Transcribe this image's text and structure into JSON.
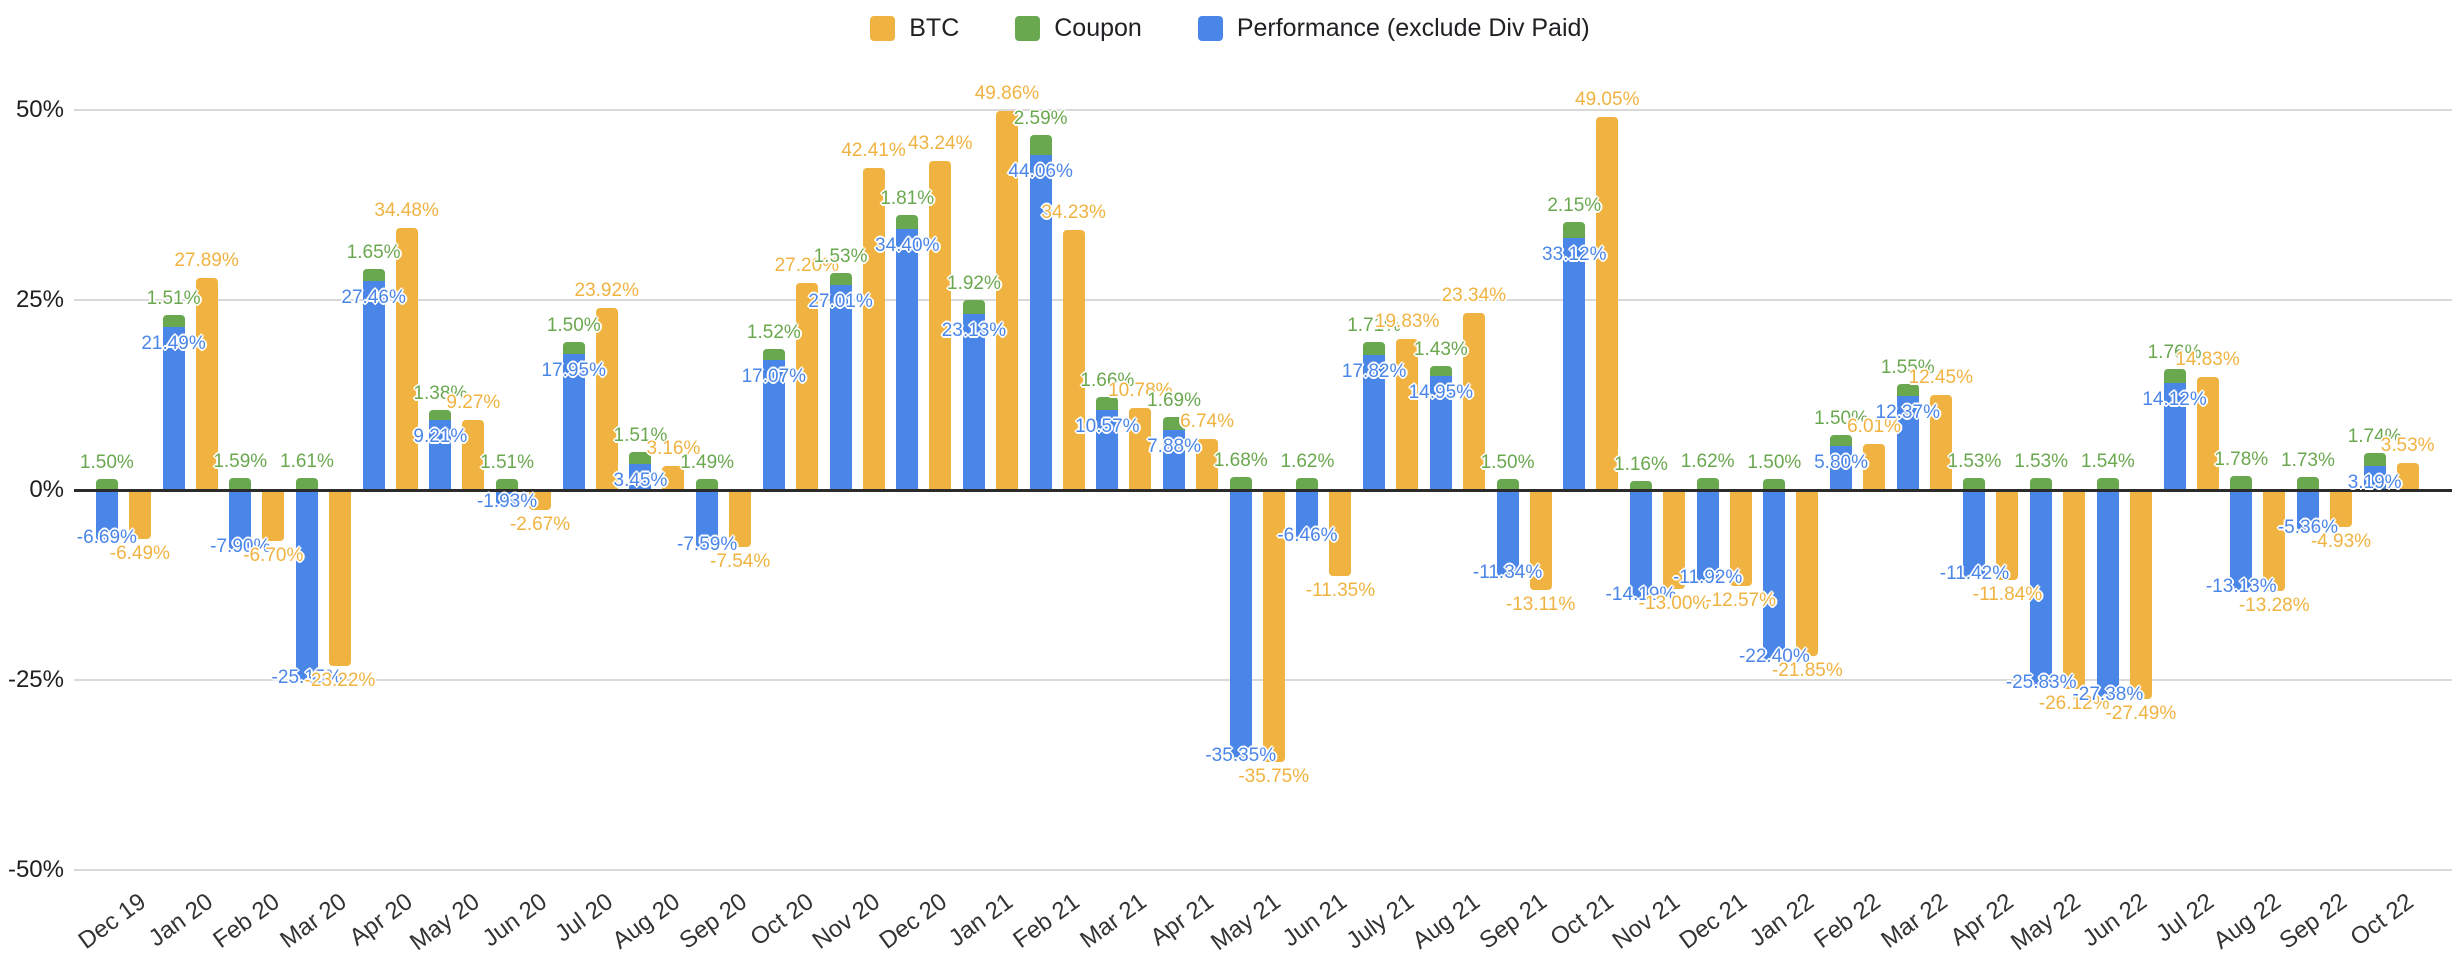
{
  "legend": {
    "items": [
      {
        "label": "BTC",
        "color": "#F0B341"
      },
      {
        "label": "Coupon",
        "color": "#6AA84F"
      },
      {
        "label": "Performance (exclude Div Paid)",
        "color": "#4A86E8"
      }
    ]
  },
  "y_axis": {
    "ticks": [
      {
        "label": "50%",
        "value": 50
      },
      {
        "label": "25%",
        "value": 25
      },
      {
        "label": "0%",
        "value": 0
      },
      {
        "label": "-25%",
        "value": -25
      },
      {
        "label": "-50%",
        "value": -50
      }
    ],
    "min": -50,
    "max": 50
  },
  "chart_data": {
    "type": "bar",
    "title": "",
    "xlabel": "",
    "ylabel": "",
    "ylim": [
      -50,
      50
    ],
    "grid": true,
    "legend_position": "top",
    "bar_layout": "Performance and Coupon stacked in one column; BTC as separate column to the right of each month group",
    "value_format": "percent, two decimals, labeled on bars",
    "categories": [
      "Dec 19",
      "Jan 20",
      "Feb 20",
      "Mar 20",
      "Apr 20",
      "May 20",
      "Jun 20",
      "Jul 20",
      "Aug 20",
      "Sep 20",
      "Oct 20",
      "Nov 20",
      "Dec 20",
      "Jan 21",
      "Feb 21",
      "Mar 21",
      "Apr 21",
      "May 21",
      "Jun 21",
      "July 21",
      "Aug 21",
      "Sep 21",
      "Oct 21",
      "Nov 21",
      "Dec 21",
      "Jan 22",
      "Feb 22",
      "Mar 22",
      "Apr 22",
      "May 22",
      "Jun 22",
      "Jul 22",
      "Aug 22",
      "Sep 22",
      "Oct 22"
    ],
    "series": [
      {
        "key": "btc",
        "name": "BTC",
        "color": "#F0B341",
        "values": [
          -6.49,
          27.89,
          -6.7,
          -23.22,
          34.48,
          9.27,
          -2.67,
          23.92,
          3.16,
          -7.54,
          27.2,
          42.41,
          43.24,
          49.86,
          34.23,
          10.78,
          6.74,
          -35.75,
          -11.35,
          19.83,
          23.34,
          -13.11,
          49.05,
          -13.0,
          -12.57,
          -21.85,
          6.01,
          12.45,
          -11.84,
          -26.12,
          -27.49,
          14.83,
          -13.28,
          -4.93,
          3.53
        ]
      },
      {
        "key": "coupon",
        "name": "Coupon",
        "color": "#6AA84F",
        "values": [
          1.5,
          1.51,
          1.59,
          1.61,
          1.65,
          1.38,
          1.51,
          1.5,
          1.51,
          1.49,
          1.52,
          1.53,
          1.81,
          1.92,
          2.59,
          1.66,
          1.69,
          1.68,
          1.62,
          1.71,
          1.43,
          1.5,
          2.15,
          1.16,
          1.62,
          1.5,
          1.5,
          1.55,
          1.53,
          1.53,
          1.54,
          1.76,
          1.78,
          1.73,
          1.74
        ]
      },
      {
        "key": "performance",
        "name": "Performance (exclude Div Paid)",
        "color": "#4A86E8",
        "values": [
          -6.69,
          21.49,
          -7.9,
          -25.15,
          27.46,
          9.21,
          -1.93,
          17.95,
          3.45,
          -7.59,
          17.07,
          27.01,
          34.4,
          23.13,
          44.06,
          10.57,
          7.88,
          -35.35,
          -6.46,
          17.82,
          14.95,
          -11.34,
          33.12,
          -14.19,
          -11.92,
          -22.4,
          5.8,
          12.37,
          -11.42,
          -25.83,
          -27.38,
          14.12,
          -13.13,
          -5.36,
          3.19
        ]
      }
    ]
  }
}
